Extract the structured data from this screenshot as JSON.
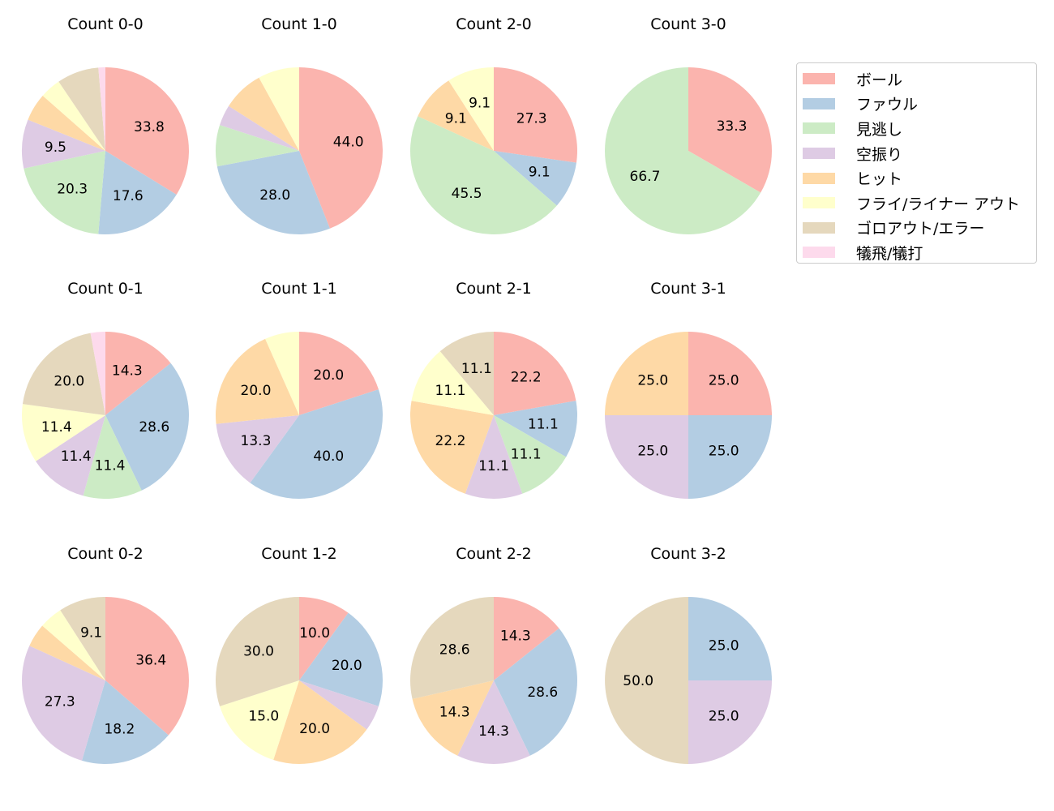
{
  "chart_data": {
    "type": "pie",
    "categories": [
      "ボール",
      "ファウル",
      "見逃し",
      "空振り",
      "ヒット",
      "フライ/ライナー アウト",
      "ゴロアウト/エラー",
      "犠飛/犠打"
    ],
    "colors": [
      "#fbb4ae",
      "#b3cde3",
      "#ccebc5",
      "#decbe4",
      "#fed9a6",
      "#ffffcc",
      "#e5d8bd",
      "#fddaec"
    ],
    "legend_position": "right",
    "start": "top, clockwise",
    "label_format": "percent, 1 decimal, shown for larger slices",
    "charts": [
      {
        "title": "Count 0-0",
        "values": [
          25,
          13,
          15,
          7,
          4,
          3,
          6,
          1
        ]
      },
      {
        "title": "Count 1-0",
        "values": [
          11,
          7,
          2,
          1,
          2,
          2,
          0,
          0
        ]
      },
      {
        "title": "Count 2-0",
        "values": [
          3,
          1,
          5,
          0,
          1,
          1,
          0,
          0
        ]
      },
      {
        "title": "Count 3-0",
        "values": [
          1,
          0,
          2,
          0,
          0,
          0,
          0,
          0
        ]
      },
      {
        "title": "Count 0-1",
        "values": [
          5,
          10,
          4,
          4,
          0,
          4,
          7,
          1
        ]
      },
      {
        "title": "Count 1-1",
        "values": [
          3,
          6,
          0,
          2,
          3,
          1,
          0,
          0
        ]
      },
      {
        "title": "Count 2-1",
        "values": [
          2,
          1,
          1,
          1,
          2,
          1,
          1,
          0
        ]
      },
      {
        "title": "Count 3-1",
        "values": [
          1,
          1,
          0,
          1,
          1,
          0,
          0,
          0
        ]
      },
      {
        "title": "Count 0-2",
        "values": [
          8,
          4,
          0,
          6,
          1,
          1,
          2,
          0
        ]
      },
      {
        "title": "Count 1-2",
        "values": [
          2,
          4,
          0,
          1,
          4,
          3,
          6,
          0
        ]
      },
      {
        "title": "Count 2-2",
        "values": [
          1,
          2,
          0,
          1,
          1,
          0,
          2,
          0
        ]
      },
      {
        "title": "Count 3-2",
        "values": [
          0,
          1,
          0,
          1,
          0,
          0,
          2,
          0
        ]
      }
    ]
  }
}
